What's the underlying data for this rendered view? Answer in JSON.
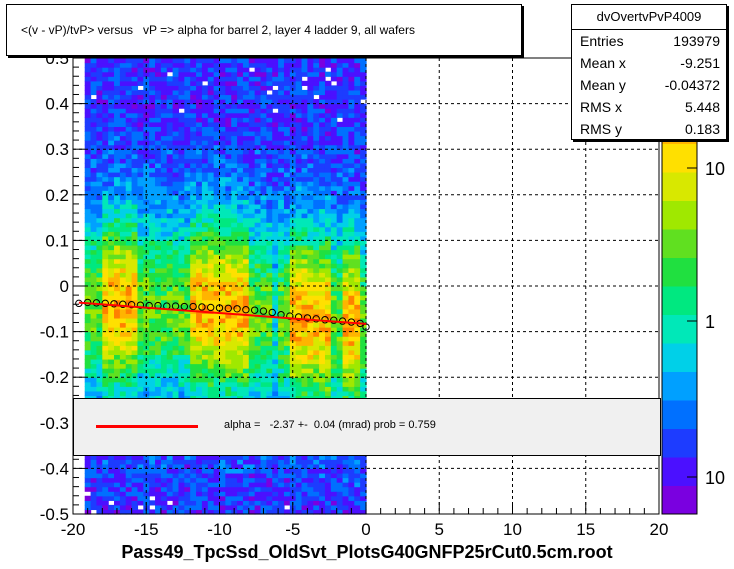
{
  "chart_data": {
    "type": "heatmap",
    "title": "<(v - vP)/tvP> versus   vP => alpha for barrel 2, layer 4 ladder 9, all wafers",
    "xlabel": "Pass49_TpcSsd_OldSvt_PlotsG40GNFP25rCut0.5cm.root",
    "ylabel": "",
    "xlim": [
      -20,
      20
    ],
    "ylim": [
      -0.5,
      0.5
    ],
    "x_ticks": [
      "-20",
      "-15",
      "-10",
      "-5",
      "0",
      "5",
      "10",
      "15",
      "20"
    ],
    "y_ticks": [
      "-0.5",
      "-0.4",
      "-0.3",
      "-0.2",
      "-0.1",
      "0",
      "0.1",
      "0.2",
      "0.3",
      "0.4",
      "0.5"
    ],
    "z_ticks": [
      "10",
      "1",
      "10"
    ],
    "grid": true,
    "data_range_x": [
      -19.2,
      0
    ],
    "profile": {
      "x": [
        -19.6,
        -19.0,
        -18.4,
        -17.8,
        -17.2,
        -16.6,
        -16.0,
        -15.4,
        -14.8,
        -14.2,
        -13.6,
        -13.0,
        -12.4,
        -11.8,
        -11.2,
        -10.6,
        -10.0,
        -9.4,
        -8.8,
        -8.2,
        -7.6,
        -7.0,
        -6.4,
        -5.8,
        -5.2,
        -4.6,
        -4.0,
        -3.4,
        -2.8,
        -2.2,
        -1.6,
        -1.0,
        -0.4,
        0.0
      ],
      "y": [
        -0.038,
        -0.036,
        -0.037,
        -0.038,
        -0.039,
        -0.04,
        -0.041,
        -0.042,
        -0.043,
        -0.043,
        -0.044,
        -0.044,
        -0.045,
        -0.045,
        -0.046,
        -0.047,
        -0.048,
        -0.049,
        -0.05,
        -0.052,
        -0.053,
        -0.055,
        -0.058,
        -0.063,
        -0.066,
        -0.068,
        -0.07,
        -0.072,
        -0.074,
        -0.075,
        -0.077,
        -0.079,
        -0.082,
        -0.09
      ]
    },
    "fit": {
      "slope_mrad": -2.37,
      "intercept": -0.083
    }
  },
  "stats": {
    "name": "dvOvertvPvP4009",
    "rows": [
      {
        "label": "Entries",
        "value": "193979"
      },
      {
        "label": "Mean x",
        "value": "-9.251"
      },
      {
        "label": "Mean y",
        "value": "-0.04372"
      },
      {
        "label": "RMS x",
        "value": "5.448"
      },
      {
        "label": "RMS y",
        "value": "0.183"
      }
    ]
  },
  "fit_legend": {
    "text": "alpha =   -2.37 +-  0.04 (mrad) prob = 0.759",
    "line_color": "#ff0000"
  }
}
